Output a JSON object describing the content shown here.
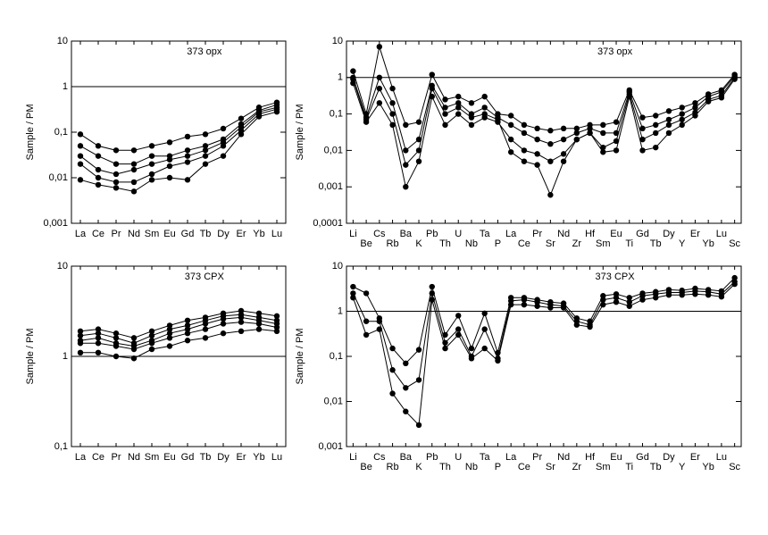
{
  "chart_data": [
    {
      "type": "line",
      "annotation": "373 opx",
      "ylabel": "Sample / PM",
      "log_y": true,
      "hline": 1,
      "color": "#000000",
      "categories": [
        "La",
        "Ce",
        "Pr",
        "Nd",
        "Sm",
        "Eu",
        "Gd",
        "Tb",
        "Dy",
        "Er",
        "Yb",
        "Lu"
      ],
      "ylim": [
        0.001,
        10
      ],
      "yticks": [
        {
          "value": 0.001,
          "label": "0,001"
        },
        {
          "value": 0.01,
          "label": "0,01"
        },
        {
          "value": 0.1,
          "label": "0,1"
        },
        1,
        10
      ],
      "series": [
        {
          "color": "#000000",
          "values": [
            0.09,
            0.05,
            0.04,
            0.04,
            0.05,
            0.06,
            0.08,
            0.09,
            0.12,
            0.2,
            0.35,
            0.45
          ]
        },
        {
          "color": "#000000",
          "values": [
            0.05,
            0.03,
            0.02,
            0.02,
            0.03,
            0.03,
            0.04,
            0.05,
            0.07,
            0.15,
            0.3,
            0.4
          ]
        },
        {
          "color": "#000000",
          "values": [
            0.03,
            0.015,
            0.012,
            0.015,
            0.02,
            0.025,
            0.03,
            0.04,
            0.06,
            0.13,
            0.28,
            0.35
          ]
        },
        {
          "color": "#000000",
          "values": [
            0.02,
            0.01,
            0.008,
            0.008,
            0.012,
            0.018,
            0.022,
            0.03,
            0.05,
            0.11,
            0.25,
            0.32
          ]
        },
        {
          "color": "#000000",
          "values": [
            0.009,
            0.007,
            0.006,
            0.005,
            0.009,
            0.01,
            0.009,
            0.02,
            0.03,
            0.09,
            0.22,
            0.28
          ]
        }
      ]
    },
    {
      "type": "line",
      "annotation": "373 opx",
      "ylabel": "Sample / PM",
      "log_y": true,
      "hline": 1,
      "color": "#000000",
      "categories": [
        "Li",
        "Be",
        "Cs",
        "Rb",
        "Ba",
        "K",
        "Pb",
        "Th",
        "U",
        "Nb",
        "Ta",
        "P",
        "La",
        "Ce",
        "Pr",
        "Sr",
        "Nd",
        "Zr",
        "Hf",
        "Sm",
        "Eu",
        "Ti",
        "Gd",
        "Tb",
        "Dy",
        "Y",
        "Er",
        "Yb",
        "Lu",
        "Sc"
      ],
      "ylim": [
        0.0001,
        10
      ],
      "yticks": [
        {
          "value": 0.0001,
          "label": "0,0001"
        },
        {
          "value": 0.001,
          "label": "0,001"
        },
        {
          "value": 0.01,
          "label": "0,01"
        },
        {
          "value": 0.1,
          "label": "0,1"
        },
        1,
        10
      ],
      "series": [
        {
          "color": "#000000",
          "values": [
            1.5,
            0.1,
            7,
            0.5,
            0.05,
            0.06,
            1.2,
            0.25,
            0.3,
            0.2,
            0.3,
            0.1,
            0.09,
            0.05,
            0.04,
            0.035,
            0.04,
            0.04,
            0.05,
            0.05,
            0.06,
            0.45,
            0.08,
            0.09,
            0.12,
            0.15,
            0.2,
            0.35,
            0.45,
            1.2
          ]
        },
        {
          "color": "#000000",
          "values": [
            1.0,
            0.08,
            1.0,
            0.2,
            0.01,
            0.02,
            0.6,
            0.15,
            0.2,
            0.1,
            0.15,
            0.08,
            0.05,
            0.03,
            0.02,
            0.015,
            0.02,
            0.03,
            0.04,
            0.03,
            0.03,
            0.4,
            0.04,
            0.05,
            0.07,
            0.1,
            0.15,
            0.3,
            0.4,
            1.1
          ]
        },
        {
          "color": "#000000",
          "values": [
            0.7,
            0.06,
            0.2,
            0.05,
            0.001,
            0.005,
            0.3,
            0.05,
            0.1,
            0.05,
            0.08,
            0.06,
            0.02,
            0.01,
            0.008,
            0.005,
            0.008,
            0.02,
            0.03,
            0.012,
            0.018,
            0.35,
            0.02,
            0.03,
            0.05,
            0.07,
            0.11,
            0.25,
            0.32,
            1.0
          ]
        },
        {
          "color": "#000000",
          "values": [
            0.9,
            0.07,
            0.5,
            0.1,
            0.004,
            0.01,
            0.5,
            0.1,
            0.15,
            0.08,
            0.1,
            0.07,
            0.009,
            0.005,
            0.004,
            0.0006,
            0.005,
            0.02,
            0.03,
            0.009,
            0.01,
            0.3,
            0.01,
            0.012,
            0.03,
            0.05,
            0.09,
            0.22,
            0.28,
            0.9
          ]
        }
      ]
    },
    {
      "type": "line",
      "annotation": "373 CPX",
      "ylabel": "Sample / PM",
      "log_y": true,
      "hline": 1,
      "color": "#000000",
      "categories": [
        "La",
        "Ce",
        "Pr",
        "Nd",
        "Sm",
        "Eu",
        "Gd",
        "Tb",
        "Dy",
        "Er",
        "Yb",
        "Lu"
      ],
      "ylim": [
        0.1,
        10
      ],
      "yticks": [
        {
          "value": 0.1,
          "label": "0,1"
        },
        1,
        10
      ],
      "series": [
        {
          "color": "#000000",
          "values": [
            1.9,
            2.0,
            1.8,
            1.6,
            1.9,
            2.2,
            2.5,
            2.7,
            3.0,
            3.2,
            3.0,
            2.8
          ]
        },
        {
          "color": "#000000",
          "values": [
            1.7,
            1.8,
            1.6,
            1.4,
            1.7,
            2.0,
            2.2,
            2.5,
            2.8,
            2.9,
            2.7,
            2.5
          ]
        },
        {
          "color": "#000000",
          "values": [
            1.5,
            1.6,
            1.4,
            1.3,
            1.5,
            1.8,
            2.0,
            2.3,
            2.6,
            2.7,
            2.5,
            2.3
          ]
        },
        {
          "color": "#000000",
          "values": [
            1.4,
            1.4,
            1.3,
            1.2,
            1.4,
            1.6,
            1.8,
            2.0,
            2.3,
            2.4,
            2.3,
            2.1
          ]
        },
        {
          "color": "#000000",
          "values": [
            1.1,
            1.1,
            1.0,
            0.95,
            1.2,
            1.3,
            1.5,
            1.6,
            1.8,
            1.9,
            2.0,
            1.9
          ]
        }
      ]
    },
    {
      "type": "line",
      "annotation": "373 CPX",
      "ylabel": "Sample / PM",
      "log_y": true,
      "hline": 1,
      "color": "#000000",
      "categories": [
        "Li",
        "Be",
        "Cs",
        "Rb",
        "Ba",
        "K",
        "Pb",
        "Th",
        "U",
        "Nb",
        "Ta",
        "P",
        "La",
        "Ce",
        "Pr",
        "Sr",
        "Nd",
        "Zr",
        "Hf",
        "Sm",
        "Eu",
        "Ti",
        "Gd",
        "Tb",
        "Dy",
        "Y",
        "Er",
        "Yb",
        "Lu",
        "Sc"
      ],
      "ylim": [
        0.001,
        10
      ],
      "yticks": [
        {
          "value": 0.001,
          "label": "0,001"
        },
        {
          "value": 0.01,
          "label": "0,01"
        },
        {
          "value": 0.1,
          "label": "0,1"
        },
        1,
        10
      ],
      "series": [
        {
          "color": "#000000",
          "values": [
            3.5,
            2.5,
            0.7,
            0.15,
            0.07,
            0.14,
            3.5,
            0.3,
            0.8,
            0.15,
            0.9,
            0.12,
            2.0,
            2.0,
            1.8,
            1.6,
            1.5,
            0.7,
            0.6,
            2.2,
            2.4,
            2.0,
            2.5,
            2.7,
            3.0,
            2.9,
            3.2,
            3.0,
            2.8,
            5.5
          ]
        },
        {
          "color": "#000000",
          "values": [
            2.5,
            0.6,
            0.6,
            0.05,
            0.02,
            0.03,
            2.5,
            0.2,
            0.4,
            0.1,
            0.4,
            0.09,
            1.7,
            1.8,
            1.6,
            1.4,
            1.3,
            0.6,
            0.5,
            1.8,
            2.0,
            1.6,
            2.2,
            2.4,
            2.6,
            2.6,
            2.8,
            2.7,
            2.4,
            4.5
          ]
        },
        {
          "color": "#000000",
          "values": [
            2.0,
            0.3,
            0.4,
            0.015,
            0.006,
            0.003,
            1.8,
            0.15,
            0.3,
            0.09,
            0.15,
            0.08,
            1.4,
            1.4,
            1.3,
            1.2,
            1.2,
            0.5,
            0.45,
            1.4,
            1.6,
            1.3,
            1.8,
            2.0,
            2.3,
            2.3,
            2.4,
            2.3,
            2.1,
            4.0
          ]
        }
      ]
    }
  ]
}
